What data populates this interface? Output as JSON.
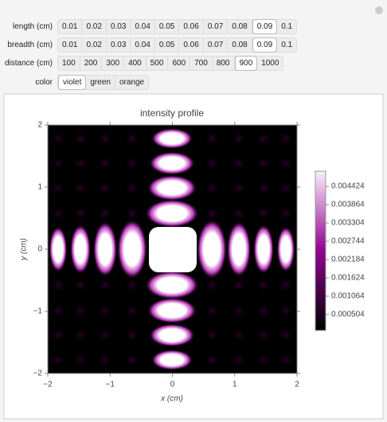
{
  "controls": [
    {
      "label": "length (cm)",
      "options": [
        "0.01",
        "0.02",
        "0.03",
        "0.04",
        "0.05",
        "0.06",
        "0.07",
        "0.08",
        "0.09",
        "0.1"
      ],
      "selected": 8
    },
    {
      "label": "breadth (cm)",
      "options": [
        "0.01",
        "0.02",
        "0.03",
        "0.04",
        "0.05",
        "0.06",
        "0.07",
        "0.08",
        "0.09",
        "0.1"
      ],
      "selected": 8
    },
    {
      "label": "distance (cm)",
      "options": [
        "100",
        "200",
        "300",
        "400",
        "500",
        "600",
        "700",
        "800",
        "900",
        "1000"
      ],
      "selected": 8
    },
    {
      "label": "color",
      "options": [
        "violet",
        "green",
        "orange"
      ],
      "selected": 0
    }
  ],
  "plot": {
    "title": "intensity profile",
    "x_label": "x (cm)",
    "y_label": "y (cm)",
    "x_ticks": [
      "−2",
      "−1",
      "0",
      "1",
      "2"
    ],
    "y_ticks": [
      "2",
      "1",
      "0",
      "−1",
      "−2"
    ],
    "colorbar_ticks": [
      "0.004424",
      "0.003864",
      "0.003304",
      "0.002744",
      "0.002184",
      "0.001624",
      "0.001064",
      "0.000504"
    ]
  }
}
